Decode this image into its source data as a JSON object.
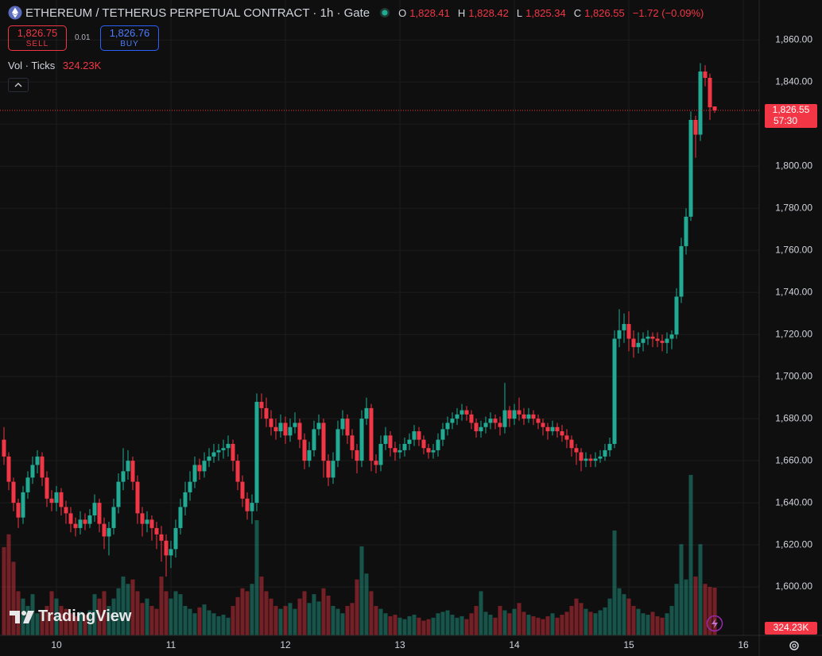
{
  "header": {
    "title": "ETHEREUM / TETHERUS PERPETUAL CONTRACT · 1h · Gate",
    "o_key": "O",
    "o": "1,828.41",
    "h_key": "H",
    "h": "1,828.42",
    "l_key": "L",
    "l": "1,825.34",
    "c_key": "C",
    "c": "1,826.55",
    "change": "−1.72 (−0.09%)"
  },
  "trade": {
    "sell_price": "1,826.75",
    "sell": "SELL",
    "spread": "0.01",
    "buy_price": "1,826.76",
    "buy": "BUY"
  },
  "indicator": {
    "name": "Vol · Ticks",
    "value": "324.23K"
  },
  "branding": "TradingView",
  "chart_data": {
    "type": "candlestick",
    "up_color": "#22ab94",
    "down_color": "#f23645",
    "grid": true,
    "ylim": [
      1577,
      1879
    ],
    "yticks": [
      {
        "value": 1600,
        "label": "1,600.00"
      },
      {
        "value": 1620,
        "label": "1,620.00"
      },
      {
        "value": 1640,
        "label": "1,640.00"
      },
      {
        "value": 1660,
        "label": "1,660.00"
      },
      {
        "value": 1680,
        "label": "1,680.00"
      },
      {
        "value": 1700,
        "label": "1,700.00"
      },
      {
        "value": 1720,
        "label": "1,720.00"
      },
      {
        "value": 1740,
        "label": "1,740.00"
      },
      {
        "value": 1760,
        "label": "1,760.00"
      },
      {
        "value": 1780,
        "label": "1,780.00"
      },
      {
        "value": 1800,
        "label": "1,800.00"
      },
      {
        "value": 1820,
        "label": "1,820.00"
      },
      {
        "value": 1840,
        "label": "1,840.00"
      },
      {
        "value": 1860,
        "label": "1,860.00"
      }
    ],
    "y2lim": [
      0,
      4320
    ],
    "price_label": "1,826.55",
    "countdown": "57:30",
    "volume_label": "324.23K",
    "categories": [
      null,
      null,
      null,
      null,
      null,
      null,
      null,
      null,
      null,
      null,
      null,
      "10",
      null,
      null,
      null,
      null,
      null,
      null,
      null,
      null,
      null,
      null,
      null,
      null,
      null,
      null,
      null,
      null,
      null,
      null,
      null,
      null,
      null,
      null,
      null,
      "11",
      null,
      null,
      null,
      null,
      null,
      null,
      null,
      null,
      null,
      null,
      null,
      null,
      null,
      null,
      null,
      null,
      null,
      null,
      null,
      null,
      null,
      null,
      null,
      "12",
      null,
      null,
      null,
      null,
      null,
      null,
      null,
      null,
      null,
      null,
      null,
      null,
      null,
      null,
      null,
      null,
      null,
      null,
      null,
      null,
      null,
      null,
      null,
      "13",
      null,
      null,
      null,
      null,
      null,
      null,
      null,
      null,
      null,
      null,
      null,
      null,
      null,
      null,
      null,
      null,
      null,
      null,
      null,
      null,
      null,
      null,
      null,
      "14",
      null,
      null,
      null,
      null,
      null,
      null,
      null,
      null,
      null,
      null,
      null,
      null,
      null,
      null,
      null,
      null,
      null,
      null,
      null,
      null,
      null,
      null,
      null,
      "15",
      null,
      null,
      null,
      null,
      null,
      null,
      null,
      null,
      null,
      null,
      null,
      null,
      null,
      null,
      null,
      null,
      null,
      null,
      null,
      null,
      null,
      null,
      null,
      "16"
    ],
    "ohlc": [
      [
        1670,
        1676,
        1658,
        1662
      ],
      [
        1662,
        1664,
        1646,
        1650
      ],
      [
        1650,
        1652,
        1636,
        1640
      ],
      [
        1640,
        1642,
        1628,
        1633
      ],
      [
        1633,
        1648,
        1630,
        1645
      ],
      [
        1645,
        1655,
        1642,
        1652
      ],
      [
        1652,
        1662,
        1649,
        1658
      ],
      [
        1658,
        1665,
        1654,
        1662
      ],
      [
        1662,
        1664,
        1648,
        1652
      ],
      [
        1652,
        1655,
        1638,
        1642
      ],
      [
        1642,
        1646,
        1636,
        1640
      ],
      [
        1640,
        1648,
        1636,
        1645
      ],
      [
        1645,
        1647,
        1634,
        1638
      ],
      [
        1638,
        1641,
        1630,
        1635
      ],
      [
        1635,
        1638,
        1626,
        1630
      ],
      [
        1630,
        1633,
        1624,
        1628
      ],
      [
        1628,
        1636,
        1625,
        1632
      ],
      [
        1632,
        1635,
        1627,
        1630
      ],
      [
        1630,
        1637,
        1628,
        1634
      ],
      [
        1634,
        1644,
        1631,
        1640
      ],
      [
        1640,
        1642,
        1626,
        1630
      ],
      [
        1630,
        1633,
        1618,
        1624
      ],
      [
        1624,
        1631,
        1615,
        1628
      ],
      [
        1628,
        1642,
        1625,
        1638
      ],
      [
        1638,
        1654,
        1635,
        1650
      ],
      [
        1650,
        1666,
        1646,
        1655
      ],
      [
        1655,
        1665,
        1651,
        1660
      ],
      [
        1660,
        1662,
        1646,
        1650
      ],
      [
        1650,
        1653,
        1630,
        1635
      ],
      [
        1635,
        1638,
        1624,
        1630
      ],
      [
        1630,
        1636,
        1626,
        1632
      ],
      [
        1632,
        1634,
        1622,
        1628
      ],
      [
        1628,
        1631,
        1618,
        1625
      ],
      [
        1625,
        1629,
        1612,
        1622
      ],
      [
        1622,
        1625,
        1605,
        1615
      ],
      [
        1615,
        1622,
        1609,
        1618
      ],
      [
        1618,
        1632,
        1614,
        1628
      ],
      [
        1628,
        1642,
        1625,
        1638
      ],
      [
        1638,
        1650,
        1634,
        1645
      ],
      [
        1645,
        1655,
        1641,
        1650
      ],
      [
        1650,
        1662,
        1647,
        1658
      ],
      [
        1658,
        1661,
        1651,
        1655
      ],
      [
        1655,
        1664,
        1652,
        1660
      ],
      [
        1660,
        1666,
        1657,
        1662
      ],
      [
        1662,
        1668,
        1659,
        1664
      ],
      [
        1664,
        1668,
        1660,
        1665
      ],
      [
        1665,
        1670,
        1661,
        1666
      ],
      [
        1666,
        1672,
        1662,
        1668
      ],
      [
        1668,
        1670,
        1655,
        1660
      ],
      [
        1660,
        1663,
        1646,
        1650
      ],
      [
        1650,
        1653,
        1638,
        1642
      ],
      [
        1642,
        1645,
        1632,
        1636
      ],
      [
        1636,
        1644,
        1630,
        1640
      ],
      [
        1640,
        1692,
        1636,
        1688
      ],
      [
        1688,
        1692,
        1680,
        1685
      ],
      [
        1685,
        1690,
        1676,
        1680
      ],
      [
        1680,
        1684,
        1672,
        1676
      ],
      [
        1676,
        1680,
        1670,
        1674
      ],
      [
        1674,
        1682,
        1671,
        1678
      ],
      [
        1678,
        1681,
        1668,
        1672
      ],
      [
        1672,
        1680,
        1669,
        1676
      ],
      [
        1676,
        1683,
        1673,
        1678
      ],
      [
        1678,
        1680,
        1666,
        1670
      ],
      [
        1670,
        1673,
        1656,
        1660
      ],
      [
        1660,
        1669,
        1657,
        1665
      ],
      [
        1665,
        1679,
        1662,
        1675
      ],
      [
        1675,
        1682,
        1672,
        1678
      ],
      [
        1678,
        1680,
        1652,
        1660
      ],
      [
        1660,
        1663,
        1648,
        1652
      ],
      [
        1652,
        1664,
        1649,
        1660
      ],
      [
        1660,
        1679,
        1657,
        1675
      ],
      [
        1675,
        1684,
        1672,
        1680
      ],
      [
        1680,
        1682,
        1668,
        1672
      ],
      [
        1672,
        1675,
        1661,
        1665
      ],
      [
        1665,
        1668,
        1654,
        1660
      ],
      [
        1660,
        1684,
        1657,
        1680
      ],
      [
        1680,
        1690,
        1677,
        1685
      ],
      [
        1685,
        1687,
        1655,
        1660
      ],
      [
        1660,
        1663,
        1654,
        1658
      ],
      [
        1658,
        1672,
        1655,
        1668
      ],
      [
        1668,
        1676,
        1665,
        1672
      ],
      [
        1672,
        1674,
        1662,
        1666
      ],
      [
        1666,
        1669,
        1660,
        1664
      ],
      [
        1664,
        1668,
        1661,
        1665
      ],
      [
        1665,
        1671,
        1662,
        1668
      ],
      [
        1668,
        1673,
        1665,
        1670
      ],
      [
        1670,
        1677,
        1667,
        1674
      ],
      [
        1674,
        1676,
        1667,
        1670
      ],
      [
        1670,
        1672,
        1663,
        1666
      ],
      [
        1666,
        1668,
        1661,
        1664
      ],
      [
        1664,
        1668,
        1661,
        1665
      ],
      [
        1665,
        1673,
        1662,
        1670
      ],
      [
        1670,
        1678,
        1667,
        1675
      ],
      [
        1675,
        1681,
        1672,
        1678
      ],
      [
        1678,
        1683,
        1675,
        1680
      ],
      [
        1680,
        1685,
        1677,
        1682
      ],
      [
        1682,
        1687,
        1679,
        1684
      ],
      [
        1684,
        1686,
        1679,
        1682
      ],
      [
        1682,
        1684,
        1675,
        1678
      ],
      [
        1678,
        1680,
        1671,
        1674
      ],
      [
        1674,
        1679,
        1671,
        1676
      ],
      [
        1676,
        1681,
        1673,
        1678
      ],
      [
        1678,
        1683,
        1675,
        1680
      ],
      [
        1680,
        1682,
        1675,
        1678
      ],
      [
        1678,
        1681,
        1672,
        1676
      ],
      [
        1676,
        1697,
        1673,
        1684
      ],
      [
        1684,
        1686,
        1676,
        1680
      ],
      [
        1680,
        1687,
        1677,
        1684
      ],
      [
        1684,
        1690,
        1679,
        1682
      ],
      [
        1682,
        1685,
        1677,
        1680
      ],
      [
        1680,
        1685,
        1678,
        1682
      ],
      [
        1682,
        1684,
        1677,
        1680
      ],
      [
        1680,
        1682,
        1675,
        1678
      ],
      [
        1678,
        1680,
        1672,
        1676
      ],
      [
        1676,
        1678,
        1670,
        1674
      ],
      [
        1674,
        1679,
        1672,
        1676
      ],
      [
        1676,
        1678,
        1671,
        1674
      ],
      [
        1674,
        1677,
        1669,
        1672
      ],
      [
        1672,
        1675,
        1666,
        1670
      ],
      [
        1670,
        1672,
        1662,
        1666
      ],
      [
        1666,
        1668,
        1658,
        1664
      ],
      [
        1664,
        1666,
        1655,
        1660
      ],
      [
        1660,
        1664,
        1657,
        1661
      ],
      [
        1661,
        1663,
        1657,
        1660
      ],
      [
        1660,
        1664,
        1657,
        1661
      ],
      [
        1661,
        1665,
        1659,
        1662
      ],
      [
        1662,
        1668,
        1660,
        1665
      ],
      [
        1665,
        1671,
        1662,
        1668
      ],
      [
        1668,
        1722,
        1666,
        1718
      ],
      [
        1718,
        1732,
        1714,
        1722
      ],
      [
        1722,
        1730,
        1716,
        1725
      ],
      [
        1725,
        1731,
        1712,
        1718
      ],
      [
        1718,
        1722,
        1709,
        1714
      ],
      [
        1714,
        1721,
        1711,
        1716
      ],
      [
        1716,
        1721,
        1712,
        1718
      ],
      [
        1718,
        1722,
        1715,
        1719
      ],
      [
        1719,
        1721,
        1714,
        1718
      ],
      [
        1718,
        1721,
        1714,
        1717
      ],
      [
        1717,
        1720,
        1712,
        1716
      ],
      [
        1716,
        1721,
        1711,
        1718
      ],
      [
        1718,
        1722,
        1713,
        1720
      ],
      [
        1720,
        1742,
        1718,
        1738
      ],
      [
        1738,
        1766,
        1735,
        1762
      ],
      [
        1762,
        1780,
        1758,
        1776
      ],
      [
        1776,
        1826,
        1774,
        1822
      ],
      [
        1822,
        1824,
        1804,
        1815
      ],
      [
        1815,
        1849,
        1812,
        1845
      ],
      [
        1845,
        1848,
        1838,
        1842
      ],
      [
        1842,
        1844,
        1822,
        1828
      ],
      [
        1828.41,
        1828.42,
        1825.34,
        1826.55
      ],
      null,
      null,
      null,
      null,
      null,
      null
    ],
    "volume": [
      600,
      687,
      500,
      300,
      250,
      200,
      280,
      150,
      160,
      200,
      300,
      250,
      200,
      180,
      150,
      130,
      160,
      140,
      170,
      280,
      250,
      300,
      200,
      250,
      320,
      400,
      350,
      380,
      300,
      220,
      250,
      200,
      180,
      400,
      300,
      250,
      300,
      280,
      200,
      180,
      150,
      190,
      210,
      170,
      150,
      130,
      140,
      120,
      200,
      260,
      320,
      300,
      350,
      783,
      400,
      300,
      250,
      200,
      180,
      200,
      220,
      180,
      250,
      300,
      220,
      280,
      230,
      320,
      270,
      200,
      180,
      150,
      200,
      220,
      380,
      605,
      420,
      300,
      200,
      180,
      150,
      130,
      140,
      120,
      110,
      130,
      140,
      120,
      100,
      110,
      120,
      150,
      160,
      170,
      140,
      120,
      130,
      110,
      150,
      200,
      300,
      160,
      140,
      120,
      200,
      170,
      150,
      180,
      220,
      160,
      140,
      130,
      120,
      110,
      130,
      150,
      120,
      140,
      160,
      200,
      250,
      220,
      180,
      160,
      150,
      170,
      190,
      250,
      713,
      320,
      280,
      250,
      200,
      180,
      150,
      140,
      160,
      130,
      120,
      150,
      200,
      350,
      620,
      380,
      1091,
      400,
      620,
      350,
      330,
      324.23,
      null,
      null,
      null,
      null,
      null,
      null
    ]
  }
}
